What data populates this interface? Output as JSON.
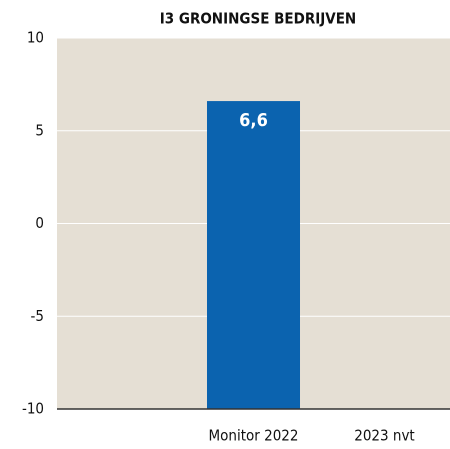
{
  "chart_data": {
    "type": "bar",
    "title": "I3  GRONINGSE BEDRIJVEN",
    "categories": [
      null,
      "Monitor 2022",
      "2023 nvt"
    ],
    "values": [
      null,
      6.6,
      null
    ],
    "value_labels": [
      null,
      "6,6",
      null
    ],
    "color": "#0b63af",
    "ylim": [
      -10,
      10
    ],
    "yticks": [
      -10,
      -5,
      0,
      5,
      10
    ],
    "grid": true
  }
}
